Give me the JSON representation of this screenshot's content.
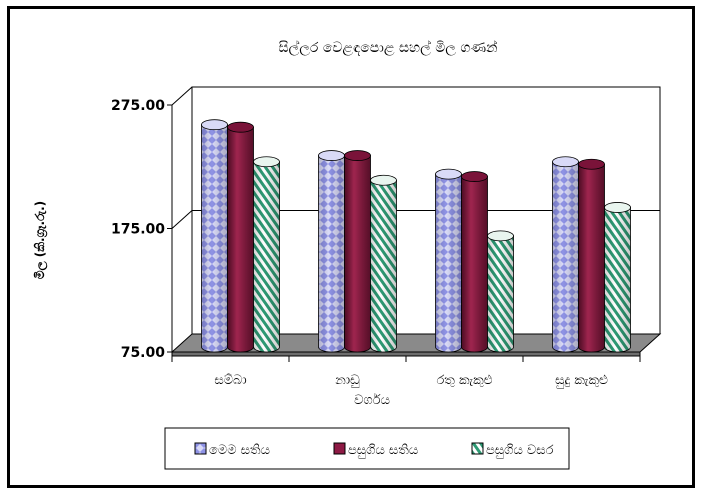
{
  "chart_data": {
    "type": "bar",
    "title": "සිල්ලර වෙළඳපොළ සහල් මිල ගණන්",
    "xlabel": "වර්ගය",
    "ylabel": "මිල (කි.ග්‍රෑ.රු.)",
    "ylim": [
      75,
      275
    ],
    "yticks": [
      "75.00",
      "175.00",
      "275.00"
    ],
    "ytick_values": [
      75,
      175,
      275
    ],
    "categories": [
      "සම්බා",
      "නාඩු",
      "රතු කැකුළු",
      "සුදු කැකුළු"
    ],
    "series": [
      {
        "name": "මෙම සතිය",
        "values": [
          255,
          230,
          215,
          225
        ]
      },
      {
        "name": "පසුගිය සතිය",
        "values": [
          253,
          230,
          213,
          223
        ]
      },
      {
        "name": "පසුගිය වසර",
        "values": [
          225,
          210,
          165,
          188
        ]
      }
    ],
    "legend_position": "bottom",
    "grid": true,
    "colors": {
      "series0": "#c7c9f2",
      "series0_pattern": "#7a7fe0",
      "series1": "#8e1a45",
      "series2": "#ffffff",
      "series2_stripe": "#2e9a74",
      "floor": "#8a8a8a",
      "wall": "#ffffff"
    }
  }
}
